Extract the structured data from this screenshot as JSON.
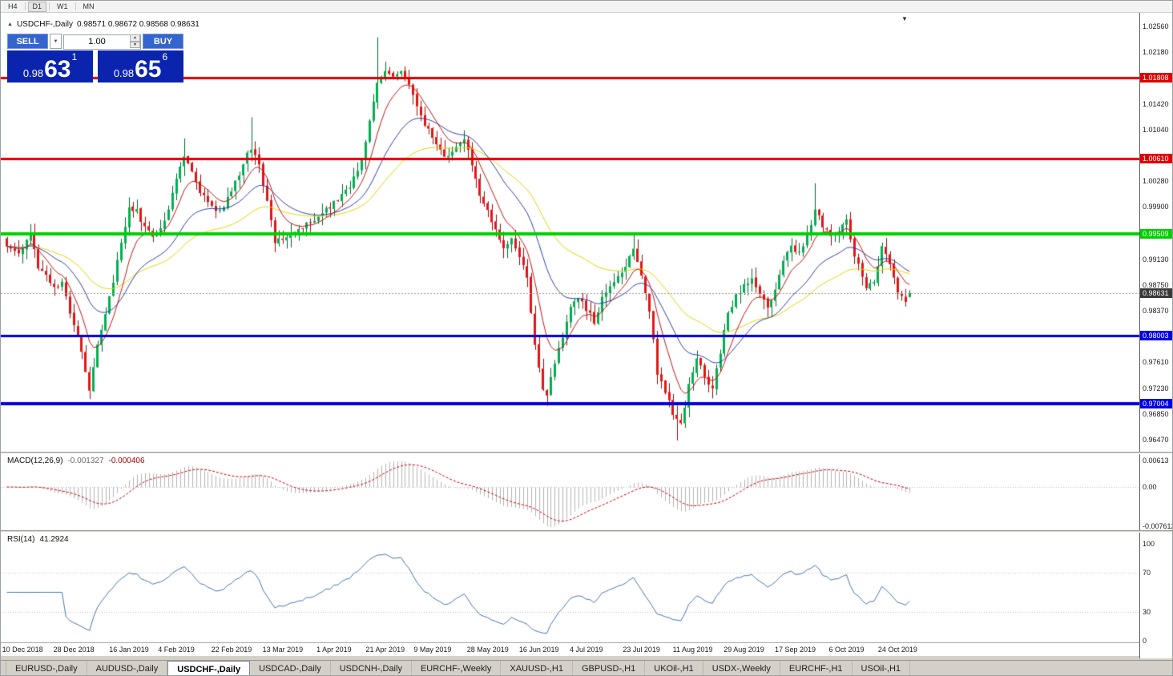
{
  "toolbar": {
    "timeframes": [
      "H4",
      "D1",
      "W1",
      "MN"
    ],
    "active": "D1"
  },
  "icons": {
    "collapse": "▲",
    "dropdown": "▼",
    "dropdown_small": "▼",
    "spin_up": "▲",
    "spin_down": "▼"
  },
  "chart_header": {
    "title": "USDCHF-,Daily",
    "ohlc": "0.98571 0.98672 0.98568 0.98631"
  },
  "trade_panel": {
    "sell_label": "SELL",
    "buy_label": "BUY",
    "volume": "1.00",
    "sell_price": {
      "prefix": "0.98",
      "big": "63",
      "pip": "1"
    },
    "buy_price": {
      "prefix": "0.98",
      "big": "65",
      "pip": "6"
    }
  },
  "chart_data": {
    "type": "candlestick",
    "symbol": "USDCHF",
    "timeframe": "Daily",
    "title": "USDCHF-,Daily",
    "last_candle": {
      "open": 0.98571,
      "high": 0.98672,
      "low": 0.98568,
      "close": 0.98631
    },
    "ylim": [
      0.96293,
      1.02761
    ],
    "candle_count": 230,
    "y_ticks": [
      1.0256,
      1.0218,
      1.0142,
      1.0104,
      1.0028,
      0.999,
      0.9913,
      0.9875,
      0.9837,
      0.9761,
      0.9723,
      0.9685,
      0.9647
    ],
    "price_levels": [
      {
        "value": 1.01808,
        "label": "1.01808",
        "color": "#e00000",
        "thickness": 3
      },
      {
        "value": 1.0061,
        "label": "1.00610",
        "color": "#e00000",
        "thickness": 3
      },
      {
        "value": 0.99509,
        "label": "0.99509",
        "color": "#00d000",
        "thickness": 4
      },
      {
        "value": 0.98003,
        "label": "0.98003",
        "color": "#0000e0",
        "thickness": 3
      },
      {
        "value": 0.97004,
        "label": "0.97004",
        "color": "#0000e0",
        "thickness": 4
      }
    ],
    "bid": {
      "value": 0.98631,
      "label": "0.98631",
      "badge_color": "#3a3a3a"
    },
    "candle_colors": {
      "up": "#00b050",
      "up_border": "#006b30",
      "down": "#e51414",
      "down_border": "#9e0b0b"
    },
    "ma_lines": [
      {
        "period": 45,
        "color": "#e6d500"
      },
      {
        "period": 22,
        "color": "#2f3fae"
      },
      {
        "period": 8,
        "color": "#c81414"
      }
    ],
    "close_waypoints": [
      [
        0,
        0.9935
      ],
      [
        3,
        0.9922
      ],
      [
        6,
        0.9948
      ],
      [
        8,
        0.9902
      ],
      [
        10,
        0.9892
      ],
      [
        12,
        0.987
      ],
      [
        14,
        0.988
      ],
      [
        16,
        0.9835
      ],
      [
        18,
        0.98
      ],
      [
        20,
        0.9745
      ],
      [
        21,
        0.9722
      ],
      [
        23,
        0.979
      ],
      [
        25,
        0.9835
      ],
      [
        27,
        0.9878
      ],
      [
        29,
        0.994
      ],
      [
        31,
        0.999
      ],
      [
        33,
        0.9985
      ],
      [
        35,
        0.9958
      ],
      [
        37,
        0.9948
      ],
      [
        39,
        0.9955
      ],
      [
        41,
        0.999
      ],
      [
        43,
        1.0035
      ],
      [
        45,
        1.0062
      ],
      [
        47,
        1.0042
      ],
      [
        49,
        1.0012
      ],
      [
        51,
        0.9995
      ],
      [
        53,
        0.9985
      ],
      [
        55,
        0.9992
      ],
      [
        57,
        1.0012
      ],
      [
        59,
        1.004
      ],
      [
        61,
        1.007
      ],
      [
        62,
        1.0078
      ],
      [
        64,
        1.0052
      ],
      [
        66,
        1.0
      ],
      [
        68,
        0.9938
      ],
      [
        70,
        0.9942
      ],
      [
        72,
        0.995
      ],
      [
        75,
        0.9962
      ],
      [
        78,
        0.9972
      ],
      [
        81,
        0.9988
      ],
      [
        84,
        0.9998
      ],
      [
        86,
        1.0012
      ],
      [
        88,
        1.0032
      ],
      [
        90,
        1.006
      ],
      [
        92,
        1.012
      ],
      [
        94,
        1.0175
      ],
      [
        96,
        1.0188
      ],
      [
        98,
        1.0182
      ],
      [
        100,
        1.019
      ],
      [
        102,
        1.017
      ],
      [
        104,
        1.0138
      ],
      [
        106,
        1.011
      ],
      [
        108,
        1.0095
      ],
      [
        110,
        1.0075
      ],
      [
        112,
        1.0062
      ],
      [
        114,
        1.008
      ],
      [
        116,
        1.0092
      ],
      [
        118,
        1.005
      ],
      [
        120,
        1.001
      ],
      [
        122,
        0.9985
      ],
      [
        124,
        0.9958
      ],
      [
        126,
        0.9925
      ],
      [
        128,
        0.9945
      ],
      [
        130,
        0.9918
      ],
      [
        132,
        0.9885
      ],
      [
        134,
        0.979
      ],
      [
        136,
        0.9722
      ],
      [
        137,
        0.9712
      ],
      [
        139,
        0.9762
      ],
      [
        141,
        0.98
      ],
      [
        143,
        0.9845
      ],
      [
        145,
        0.9858
      ],
      [
        147,
        0.984
      ],
      [
        149,
        0.9822
      ],
      [
        151,
        0.9855
      ],
      [
        153,
        0.987
      ],
      [
        155,
        0.9888
      ],
      [
        157,
        0.9905
      ],
      [
        159,
        0.9928
      ],
      [
        161,
        0.9888
      ],
      [
        163,
        0.984
      ],
      [
        165,
        0.9742
      ],
      [
        167,
        0.9718
      ],
      [
        169,
        0.9685
      ],
      [
        171,
        0.9668
      ],
      [
        173,
        0.9725
      ],
      [
        175,
        0.9768
      ],
      [
        177,
        0.9742
      ],
      [
        179,
        0.9722
      ],
      [
        181,
        0.9778
      ],
      [
        183,
        0.9832
      ],
      [
        185,
        0.9858
      ],
      [
        187,
        0.9872
      ],
      [
        189,
        0.9882
      ],
      [
        191,
        0.9862
      ],
      [
        193,
        0.9842
      ],
      [
        195,
        0.9872
      ],
      [
        197,
        0.9912
      ],
      [
        199,
        0.9932
      ],
      [
        201,
        0.9922
      ],
      [
        203,
        0.9948
      ],
      [
        205,
        0.9985
      ],
      [
        207,
        0.9962
      ],
      [
        209,
        0.9948
      ],
      [
        211,
        0.9955
      ],
      [
        213,
        0.9968
      ],
      [
        215,
        0.9918
      ],
      [
        217,
        0.9888
      ],
      [
        218,
        0.9868
      ],
      [
        220,
        0.9882
      ],
      [
        222,
        0.9932
      ],
      [
        224,
        0.9905
      ],
      [
        226,
        0.9868
      ],
      [
        228,
        0.9852
      ],
      [
        229,
        0.98631
      ]
    ],
    "wick_extremes": [
      {
        "i": 21,
        "low": 0.9707
      },
      {
        "i": 45,
        "high": 1.0091
      },
      {
        "i": 62,
        "high": 1.0122
      },
      {
        "i": 94,
        "high": 1.024
      },
      {
        "i": 137,
        "low": 0.9697
      },
      {
        "i": 159,
        "high": 0.9952
      },
      {
        "i": 170,
        "low": 0.9646
      },
      {
        "i": 205,
        "high": 1.0025
      }
    ],
    "x_labels": [
      {
        "label": "10 Dec 2018",
        "i": 4
      },
      {
        "label": "28 Dec 2018",
        "i": 17
      },
      {
        "label": "16 Jan 2019",
        "i": 31
      },
      {
        "label": "4 Feb 2019",
        "i": 43
      },
      {
        "label": "22 Feb 2019",
        "i": 57
      },
      {
        "label": "13 Mar 2019",
        "i": 70
      },
      {
        "label": "1 Apr 2019",
        "i": 83
      },
      {
        "label": "21 Apr 2019",
        "i": 96
      },
      {
        "label": "9 May 2019",
        "i": 108
      },
      {
        "label": "28 May 2019",
        "i": 122
      },
      {
        "label": "16 Jun 2019",
        "i": 135
      },
      {
        "label": "4 Jul 2019",
        "i": 147
      },
      {
        "label": "23 Jul 2019",
        "i": 161
      },
      {
        "label": "11 Aug 2019",
        "i": 174
      },
      {
        "label": "29 Aug 2019",
        "i": 187
      },
      {
        "label": "17 Sep 2019",
        "i": 200
      },
      {
        "label": "6 Oct 2019",
        "i": 213
      },
      {
        "label": "24 Oct 2019",
        "i": 226
      }
    ],
    "macd": {
      "name": "MACD(12,26,9)",
      "main_value": "-0.001327",
      "signal_value": "-0.000406",
      "params": [
        12,
        26,
        9
      ],
      "ticks": {
        "top": "0.00613",
        "zero": "0.00",
        "bottom": "-0.007612"
      },
      "hist_color": "#b4b4b4",
      "signal_color": "#d40000"
    },
    "rsi": {
      "name": "RSI(14)",
      "value": "41.2924",
      "period": 14,
      "levels": [
        100,
        70,
        30,
        0
      ],
      "color": "#4577b5"
    }
  },
  "tabs": {
    "items": [
      "EURUSD-,Daily",
      "AUDUSD-,Daily",
      "USDCHF-,Daily",
      "USDCAD-,Daily",
      "USDCNH-,Daily",
      "EURCHF-,Weekly",
      "XAUUSD-,H1",
      "GBPUSD-,H1",
      "UKOil-,H1",
      "USDX-,Weekly",
      "EURCHF-,H1",
      "USOil-,H1"
    ],
    "active": "USDCHF-,Daily"
  }
}
